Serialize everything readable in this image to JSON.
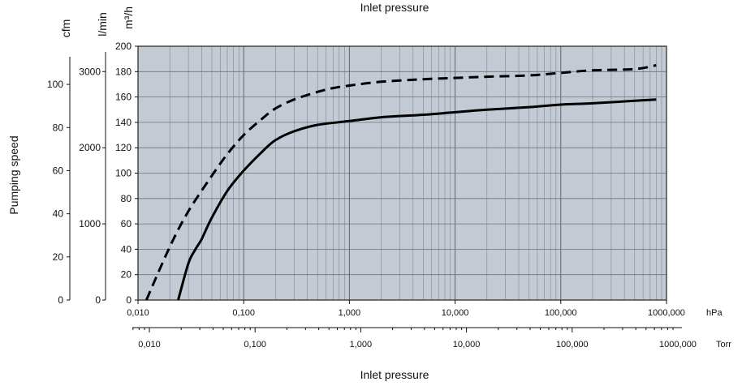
{
  "chart_data": {
    "type": "line",
    "title": "Inlet pressure",
    "xlabel": "Inlet pressure",
    "ylabel": "Pumping speed",
    "x_scale": "log",
    "grid": true,
    "x_axis_hpa": {
      "unit": "hPa",
      "range": [
        0.01,
        1000
      ],
      "tick_values": [
        0.01,
        0.1,
        1,
        10,
        100,
        1000
      ],
      "tick_labels": [
        "0,010",
        "0,100",
        "1,000",
        "10,000",
        "100,000",
        "1000,000"
      ]
    },
    "x_axis_torr": {
      "unit": "Torr",
      "tick_labels": [
        "0,010",
        "0,100",
        "1,000",
        "10,000",
        "100,000",
        "1000,000"
      ]
    },
    "y_axis_m3h": {
      "unit": "m³/h",
      "range": [
        0,
        200
      ],
      "ticks": [
        "0",
        "20",
        "40",
        "60",
        "80",
        "100",
        "120",
        "140",
        "160",
        "180",
        "200"
      ]
    },
    "y_axis_lmin": {
      "unit": "l/min",
      "range": [
        0,
        3333
      ],
      "ticks": [
        "0",
        "1000",
        "2000",
        "3000"
      ]
    },
    "y_axis_cfm": {
      "unit": "cfm",
      "range": [
        0,
        117.7
      ],
      "ticks": [
        "0",
        "20",
        "40",
        "60",
        "80",
        "100"
      ]
    },
    "series": [
      {
        "style": "dashed",
        "x": [
          0.012,
          0.02,
          0.03,
          0.05,
          0.07,
          0.1,
          0.15,
          0.2,
          0.3,
          0.5,
          0.7,
          1,
          2,
          5,
          10,
          20,
          50,
          100,
          200,
          500,
          800
        ],
        "y": [
          0,
          42,
          70,
          98,
          115,
          130,
          143,
          151,
          158,
          164,
          167,
          169,
          172,
          174,
          175,
          176,
          177,
          179,
          181,
          182,
          185
        ]
      },
      {
        "style": "solid",
        "x": [
          0.024,
          0.03,
          0.035,
          0.04,
          0.05,
          0.07,
          0.1,
          0.15,
          0.2,
          0.3,
          0.5,
          1,
          2,
          5,
          10,
          20,
          50,
          100,
          200,
          500,
          800
        ],
        "y": [
          0,
          29,
          40,
          48,
          65,
          86,
          102,
          117,
          126,
          133,
          138,
          141,
          144,
          146,
          148,
          150,
          152,
          154,
          155,
          157,
          158
        ]
      }
    ]
  }
}
